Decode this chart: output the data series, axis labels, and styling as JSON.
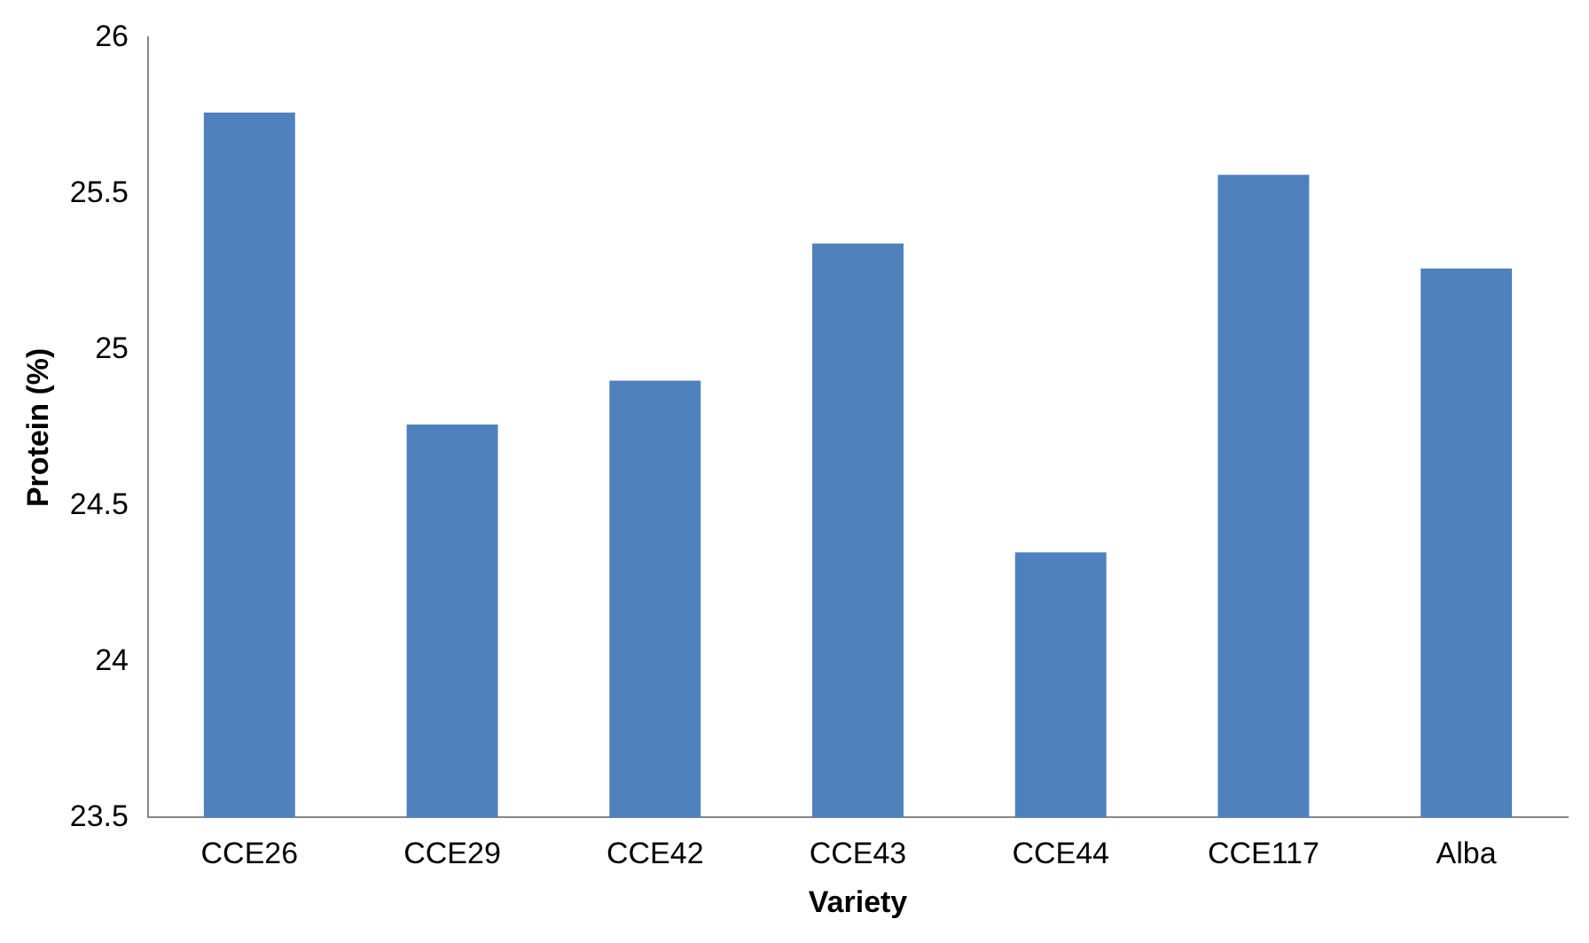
{
  "chart_data": {
    "type": "bar",
    "xlabel": "Variety",
    "ylabel": "Protein (%)",
    "categories": [
      "CCE26",
      "CCE29",
      "CCE42",
      "CCE43",
      "CCE44",
      "CCE117",
      "Alba"
    ],
    "values": [
      25.76,
      24.76,
      24.9,
      25.34,
      24.35,
      25.56,
      25.26
    ],
    "color": "#4f81bd",
    "ylim": [
      23.5,
      26
    ],
    "yticks": [
      23.5,
      24,
      24.5,
      25,
      25.5,
      26
    ],
    "grid": false,
    "legend": false
  }
}
